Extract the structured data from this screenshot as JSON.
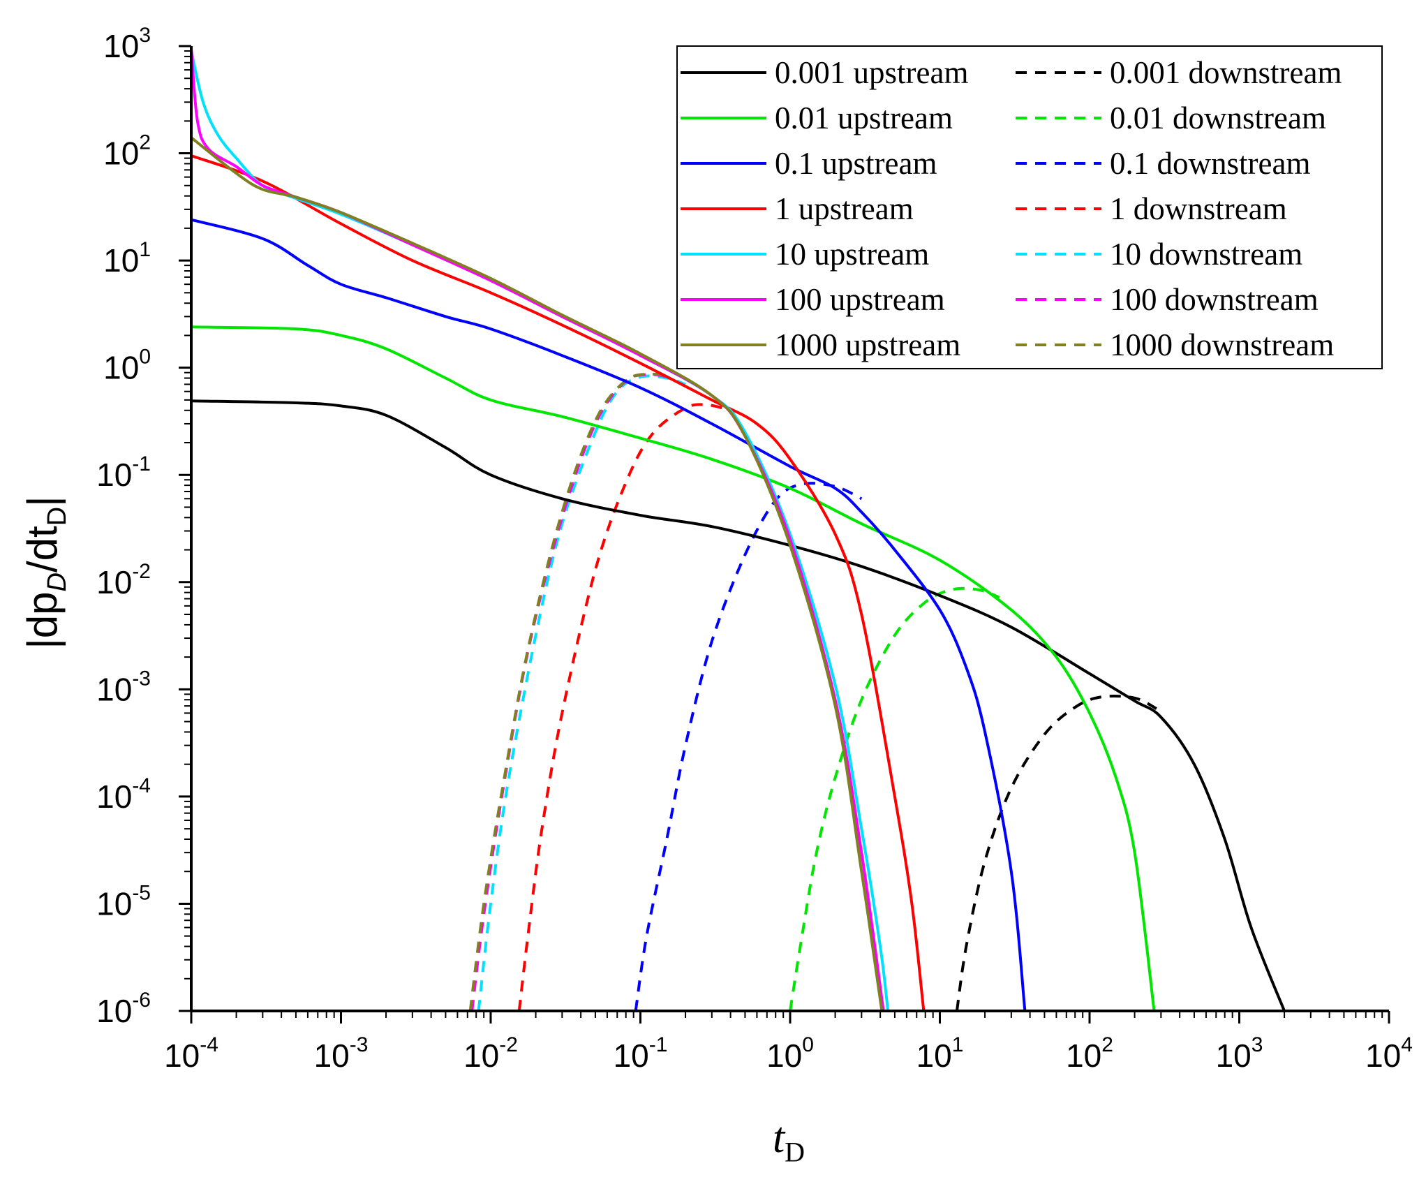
{
  "chart_data": {
    "type": "line",
    "xscale": "log",
    "yscale": "log",
    "xlim": [
      0.0001,
      10000
    ],
    "ylim": [
      1e-06,
      1000
    ],
    "x_ticks": [
      {
        "value": 0.0001,
        "base": "10",
        "exp": "-4"
      },
      {
        "value": 0.001,
        "base": "10",
        "exp": "-3"
      },
      {
        "value": 0.01,
        "base": "10",
        "exp": "-2"
      },
      {
        "value": 0.1,
        "base": "10",
        "exp": "-1"
      },
      {
        "value": 1,
        "base": "10",
        "exp": "0"
      },
      {
        "value": 10,
        "base": "10",
        "exp": "1"
      },
      {
        "value": 100,
        "base": "10",
        "exp": "2"
      },
      {
        "value": 1000,
        "base": "10",
        "exp": "3"
      },
      {
        "value": 10000,
        "base": "10",
        "exp": "4"
      }
    ],
    "y_ticks": [
      {
        "value": 1e-06,
        "base": "10",
        "exp": "-6"
      },
      {
        "value": 1e-05,
        "base": "10",
        "exp": "-5"
      },
      {
        "value": 0.0001,
        "base": "10",
        "exp": "-4"
      },
      {
        "value": 0.001,
        "base": "10",
        "exp": "-3"
      },
      {
        "value": 0.01,
        "base": "10",
        "exp": "-2"
      },
      {
        "value": 0.1,
        "base": "10",
        "exp": "-1"
      },
      {
        "value": 1,
        "base": "10",
        "exp": "0"
      },
      {
        "value": 10,
        "base": "10",
        "exp": "1"
      },
      {
        "value": 100,
        "base": "10",
        "exp": "2"
      },
      {
        "value": 1000,
        "base": "10",
        "exp": "3"
      }
    ],
    "xlabel": {
      "main": "t",
      "sub": "D"
    },
    "ylabel": {
      "pre": "|dp",
      "sub1": "D",
      "mid": "/dt",
      "sub2": "D",
      "post": "|"
    },
    "legend_position": "top-right",
    "series": [
      {
        "name": "0.001 upstream",
        "color": "#000000",
        "dashed": false,
        "points": [
          [
            0.0001,
            0.49
          ],
          [
            0.0005,
            0.47
          ],
          [
            0.001,
            0.44
          ],
          [
            0.002,
            0.36
          ],
          [
            0.005,
            0.18
          ],
          [
            0.01,
            0.1
          ],
          [
            0.03,
            0.06
          ],
          [
            0.1,
            0.042
          ],
          [
            0.3,
            0.033
          ],
          [
            1,
            0.022
          ],
          [
            3,
            0.014
          ],
          [
            10,
            0.0075
          ],
          [
            30,
            0.0038
          ],
          [
            100,
            0.0014
          ],
          [
            200,
            0.00078
          ],
          [
            300,
            0.00055
          ],
          [
            500,
            0.0002
          ],
          [
            800,
            4e-05
          ],
          [
            1200,
            6e-06
          ],
          [
            2000,
            1e-06
          ]
        ]
      },
      {
        "name": "0.01 upstream",
        "color": "#00e600",
        "dashed": false,
        "points": [
          [
            0.0001,
            2.4
          ],
          [
            0.0005,
            2.3
          ],
          [
            0.001,
            2.0
          ],
          [
            0.002,
            1.5
          ],
          [
            0.005,
            0.8
          ],
          [
            0.01,
            0.5
          ],
          [
            0.03,
            0.35
          ],
          [
            0.1,
            0.22
          ],
          [
            0.3,
            0.14
          ],
          [
            1,
            0.075
          ],
          [
            3,
            0.035
          ],
          [
            10,
            0.016
          ],
          [
            30,
            0.0055
          ],
          [
            60,
            0.002
          ],
          [
            100,
            0.0006
          ],
          [
            150,
            0.00015
          ],
          [
            200,
            3e-05
          ],
          [
            270,
            1e-06
          ]
        ]
      },
      {
        "name": "0.1 upstream",
        "color": "#0000ff",
        "dashed": false,
        "points": [
          [
            0.0001,
            24
          ],
          [
            0.0003,
            16
          ],
          [
            0.0006,
            9
          ],
          [
            0.001,
            6
          ],
          [
            0.002,
            4.5
          ],
          [
            0.005,
            3
          ],
          [
            0.01,
            2.3
          ],
          [
            0.03,
            1.3
          ],
          [
            0.1,
            0.65
          ],
          [
            0.3,
            0.3
          ],
          [
            1,
            0.12
          ],
          [
            2,
            0.075
          ],
          [
            3,
            0.045
          ],
          [
            5,
            0.02
          ],
          [
            10,
            0.0055
          ],
          [
            15,
            0.0016
          ],
          [
            20,
            0.0004
          ],
          [
            30,
            2e-05
          ],
          [
            37,
            1e-06
          ]
        ]
      },
      {
        "name": "1 upstream",
        "color": "#ff0000",
        "dashed": false,
        "points": [
          [
            0.0001,
            95
          ],
          [
            0.0003,
            55
          ],
          [
            0.001,
            22
          ],
          [
            0.003,
            10
          ],
          [
            0.01,
            5
          ],
          [
            0.03,
            2.5
          ],
          [
            0.1,
            1.1
          ],
          [
            0.3,
            0.5
          ],
          [
            0.6,
            0.3
          ],
          [
            1,
            0.14
          ],
          [
            2,
            0.028
          ],
          [
            3,
            0.005
          ],
          [
            5,
            0.0001
          ],
          [
            6.5,
            1e-05
          ],
          [
            7.8,
            1e-06
          ]
        ]
      },
      {
        "name": "10 upstream",
        "color": "#00e0ff",
        "dashed": false,
        "points": [
          [
            0.0001,
            900
          ],
          [
            0.00012,
            300
          ],
          [
            0.00015,
            150
          ],
          [
            0.0002,
            90
          ],
          [
            0.0003,
            50
          ],
          [
            0.0005,
            38
          ],
          [
            0.001,
            27
          ],
          [
            0.003,
            14
          ],
          [
            0.01,
            6.5
          ],
          [
            0.03,
            3
          ],
          [
            0.1,
            1.3
          ],
          [
            0.3,
            0.55
          ],
          [
            0.5,
            0.25
          ],
          [
            1,
            0.028
          ],
          [
            2,
            0.0011
          ],
          [
            3,
            5e-05
          ],
          [
            4,
            4e-06
          ],
          [
            4.5,
            1e-06
          ]
        ]
      },
      {
        "name": "100 upstream",
        "color": "#ff00ff",
        "dashed": false,
        "points": [
          [
            0.0001,
            950
          ],
          [
            0.00011,
            200
          ],
          [
            0.00013,
            110
          ],
          [
            0.0002,
            75
          ],
          [
            0.0003,
            50
          ],
          [
            0.0005,
            39
          ],
          [
            0.001,
            28
          ],
          [
            0.003,
            14
          ],
          [
            0.01,
            6.5
          ],
          [
            0.03,
            3
          ],
          [
            0.1,
            1.3
          ],
          [
            0.3,
            0.55
          ],
          [
            0.5,
            0.23
          ],
          [
            1,
            0.025
          ],
          [
            2,
            0.0008
          ],
          [
            3,
            3e-05
          ],
          [
            4.2,
            1e-06
          ]
        ]
      },
      {
        "name": "1000 upstream",
        "color": "#808020",
        "dashed": false,
        "points": [
          [
            0.0001,
            140
          ],
          [
            0.0002,
            65
          ],
          [
            0.0003,
            46
          ],
          [
            0.0005,
            39
          ],
          [
            0.001,
            28
          ],
          [
            0.003,
            14.5
          ],
          [
            0.01,
            6.8
          ],
          [
            0.03,
            3.1
          ],
          [
            0.1,
            1.35
          ],
          [
            0.3,
            0.55
          ],
          [
            0.5,
            0.23
          ],
          [
            1,
            0.022
          ],
          [
            2,
            0.0007
          ],
          [
            3,
            2e-05
          ],
          [
            4.1,
            1e-06
          ]
        ]
      },
      {
        "name": "0.001 downstream",
        "color": "#000000",
        "dashed": true,
        "points": [
          [
            13,
            1e-06
          ],
          [
            15,
            4e-06
          ],
          [
            20,
            2.5e-05
          ],
          [
            30,
            0.00012
          ],
          [
            50,
            0.00038
          ],
          [
            80,
            0.00068
          ],
          [
            120,
            0.00085
          ],
          [
            200,
            0.00083
          ],
          [
            280,
            0.00066
          ]
        ]
      },
      {
        "name": "0.01 downstream",
        "color": "#00e600",
        "dashed": true,
        "points": [
          [
            1,
            1e-06
          ],
          [
            1.2,
            5e-06
          ],
          [
            1.5,
            3e-05
          ],
          [
            2,
            0.00015
          ],
          [
            3,
            0.0008
          ],
          [
            5,
            0.0032
          ],
          [
            8,
            0.0065
          ],
          [
            12,
            0.0085
          ],
          [
            18,
            0.0085
          ],
          [
            25,
            0.0072
          ]
        ]
      },
      {
        "name": "0.1 downstream",
        "color": "#0000ff",
        "dashed": true,
        "points": [
          [
            0.093,
            1e-06
          ],
          [
            0.11,
            5e-06
          ],
          [
            0.15,
            4e-05
          ],
          [
            0.2,
            0.0003
          ],
          [
            0.3,
            0.0028
          ],
          [
            0.5,
            0.018
          ],
          [
            0.8,
            0.058
          ],
          [
            1.2,
            0.082
          ],
          [
            2,
            0.078
          ],
          [
            3,
            0.06
          ]
        ]
      },
      {
        "name": "1 downstream",
        "color": "#ff0000",
        "dashed": true,
        "points": [
          [
            0.0155,
            1e-06
          ],
          [
            0.018,
            6e-06
          ],
          [
            0.022,
            5e-05
          ],
          [
            0.03,
            0.0006
          ],
          [
            0.05,
            0.013
          ],
          [
            0.08,
            0.085
          ],
          [
            0.12,
            0.24
          ],
          [
            0.2,
            0.42
          ],
          [
            0.28,
            0.45
          ],
          [
            0.4,
            0.4
          ]
        ]
      },
      {
        "name": "10 downstream",
        "color": "#00e0ff",
        "dashed": true,
        "points": [
          [
            0.0083,
            1e-06
          ],
          [
            0.01,
            1e-05
          ],
          [
            0.013,
            0.00013
          ],
          [
            0.02,
            0.0032
          ],
          [
            0.03,
            0.035
          ],
          [
            0.05,
            0.25
          ],
          [
            0.07,
            0.6
          ],
          [
            0.1,
            0.82
          ],
          [
            0.15,
            0.8
          ],
          [
            0.2,
            0.7
          ]
        ]
      },
      {
        "name": "100 downstream",
        "color": "#ff00ff",
        "dashed": true,
        "points": [
          [
            0.0075,
            1e-06
          ],
          [
            0.009,
            8e-06
          ],
          [
            0.012,
            0.00011
          ],
          [
            0.018,
            0.0025
          ],
          [
            0.03,
            0.04
          ],
          [
            0.05,
            0.3
          ],
          [
            0.08,
            0.75
          ],
          [
            0.12,
            0.86
          ],
          [
            0.16,
            0.8
          ]
        ]
      },
      {
        "name": "1000 downstream",
        "color": "#808020",
        "dashed": true,
        "points": [
          [
            0.0073,
            1e-06
          ],
          [
            0.009,
            1e-05
          ],
          [
            0.012,
            0.00012
          ],
          [
            0.018,
            0.0026
          ],
          [
            0.03,
            0.045
          ],
          [
            0.05,
            0.32
          ],
          [
            0.08,
            0.76
          ],
          [
            0.12,
            0.87
          ],
          [
            0.16,
            0.82
          ]
        ]
      }
    ]
  }
}
